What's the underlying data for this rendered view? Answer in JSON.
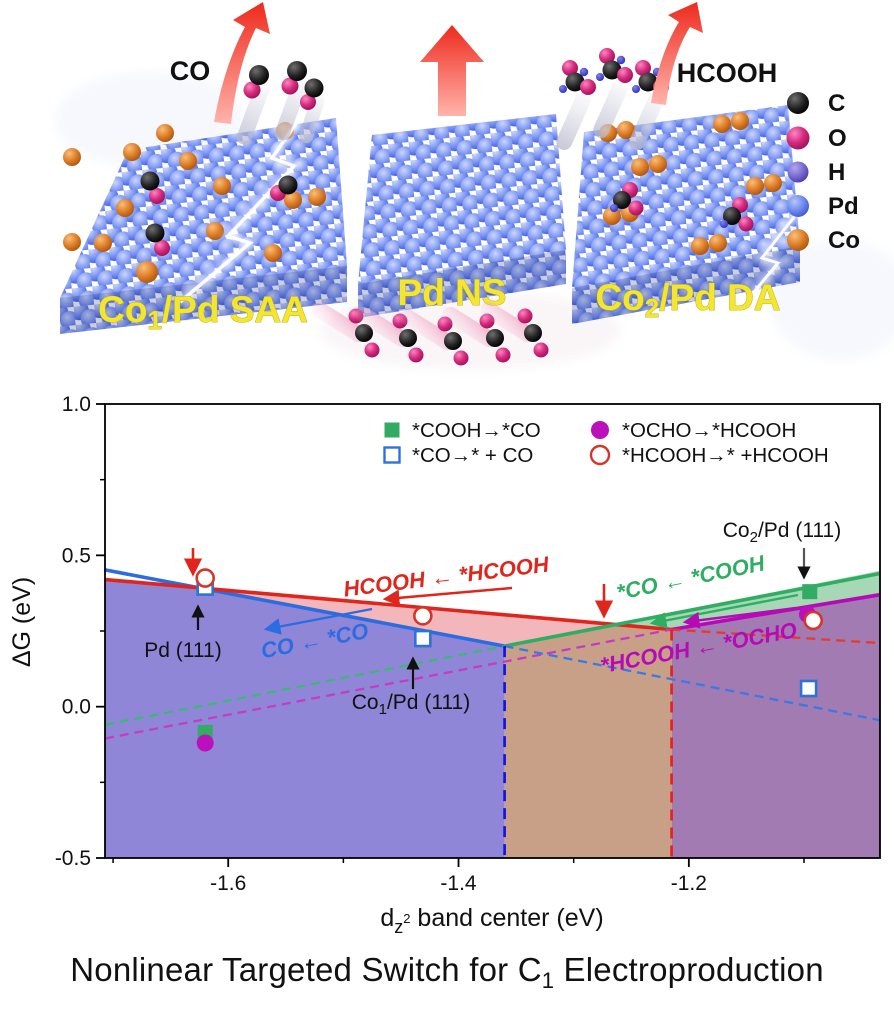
{
  "illustration": {
    "arrow_labels": {
      "left": "CO",
      "right": "HCOOH"
    },
    "surface_labels": [
      {
        "pre": "Co",
        "sub": "1",
        "post": "/Pd SAA"
      },
      {
        "pre": "Pd NS",
        "sub": "",
        "post": ""
      },
      {
        "pre": "Co",
        "sub": "2",
        "post": "/Pd DA"
      }
    ],
    "atom_legend": [
      {
        "element": "C",
        "color": "#1c1c1c"
      },
      {
        "element": "O",
        "color": "#d42a7e"
      },
      {
        "element": "H",
        "color": "#7468cc"
      },
      {
        "element": "Pd",
        "color": "#6e8cf0"
      },
      {
        "element": "Co",
        "color": "#e07f28"
      }
    ]
  },
  "chart": {
    "ylabel": "ΔG (eV)",
    "xlabel_parts": {
      "d": "d",
      "z": "z",
      "sup": "2",
      "rest": " band center (eV)"
    },
    "x_tick_labels": [
      "-1.6",
      "-1.4",
      "-1.2"
    ],
    "y_tick_labels": [
      "1.0",
      "0.5",
      "0.0",
      "-0.5"
    ],
    "legend": [
      {
        "label": "*COOH→*CO",
        "marker": "square-filled",
        "color": "#33ab63"
      },
      {
        "label": "*CO→* + CO",
        "marker": "square-open",
        "color": "#2d72d9"
      },
      {
        "label": "*OCHO→*HCOOH",
        "marker": "circle-filled",
        "color": "#bb10bb"
      },
      {
        "label": "*HCOOH→* +HCOOH",
        "marker": "circle-open",
        "color": "#d6352b"
      }
    ],
    "annotations": {
      "pd111": "Pd (111)",
      "co1pd": {
        "pre": "Co",
        "sub": "1",
        "post": "/Pd (111)"
      },
      "co2pd": {
        "pre": "Co",
        "sub": "2",
        "post": "/Pd (111)"
      },
      "path_red": "HCOOH ← *HCOOH",
      "path_blue": "CO ← *CO",
      "path_green": "*CO ← *COOH",
      "path_magenta": "*HCOOH ← *OCHO"
    },
    "chart_data": {
      "type": "scatter",
      "title": "",
      "xlabel": "dz2 band center (eV)",
      "ylabel": "ΔG (eV)",
      "xlim": [
        -1.707,
        -1.034
      ],
      "ylim": [
        -0.5,
        1.0
      ],
      "x_ticks": [
        -1.6,
        -1.4,
        -1.2
      ],
      "y_ticks": [
        1.0,
        0.5,
        0.0,
        -0.5
      ],
      "grid": false,
      "legend_position": "upper center",
      "series": [
        {
          "name": "*COOH→*CO",
          "marker": "square-filled",
          "color": "#33ab63",
          "points": [
            [
              -1.62,
              -0.085
            ],
            [
              -1.095,
              0.38
            ]
          ]
        },
        {
          "name": "*CO→* + CO",
          "marker": "square-open",
          "color": "#2d72d9",
          "points": [
            [
              -1.62,
              0.395
            ],
            [
              -1.431,
              0.225
            ],
            [
              -1.096,
              0.06
            ]
          ]
        },
        {
          "name": "*OCHO→*HCOOH",
          "marker": "circle-filled",
          "color": "#bb10bb",
          "points": [
            [
              -1.62,
              -0.12
            ],
            [
              -1.097,
              0.305
            ]
          ]
        },
        {
          "name": "*HCOOH→* +HCOOH",
          "marker": "circle-open",
          "color": "#d6352b",
          "points": [
            [
              -1.62,
              0.425
            ],
            [
              -1.431,
              0.3
            ],
            [
              -1.092,
              0.285
            ]
          ]
        }
      ],
      "lines": [
        {
          "name": "CO ← *CO",
          "color": "#2b6de0",
          "style": "solid",
          "x1": -1.707,
          "y1": 0.452,
          "x2": -1.36,
          "y2": 0.2
        },
        {
          "name": "HCOOH ← *HCOOH",
          "color": "#e0251c",
          "style": "solid",
          "x1": -1.707,
          "y1": 0.42,
          "x2": -1.215,
          "y2": 0.255
        },
        {
          "name": "*CO ← *COOH",
          "color": "#2fae63",
          "style": "solid",
          "x1": -1.36,
          "y1": 0.2,
          "x2": -1.034,
          "y2": 0.44
        },
        {
          "name": "*HCOOH ← *OCHO",
          "color": "#b50ab5",
          "style": "solid",
          "x1": -1.215,
          "y1": 0.255,
          "x2": -1.034,
          "y2": 0.37
        },
        {
          "name": "*CO ← *COOH extrapolated",
          "color": "#3db873",
          "style": "dashed",
          "x1": -1.707,
          "y1": -0.06,
          "x2": -1.36,
          "y2": 0.2
        },
        {
          "name": "*HCOOH ← *OCHO extrapolated",
          "color": "#c43bc4",
          "style": "dashed",
          "x1": -1.707,
          "y1": -0.105,
          "x2": -1.215,
          "y2": 0.255
        },
        {
          "name": "CO ← *CO extrapolated",
          "color": "#3a78e8",
          "style": "dashed",
          "x1": -1.36,
          "y1": 0.2,
          "x2": -1.034,
          "y2": -0.045
        },
        {
          "name": "HCOOH ← *HCOOH extrapolated",
          "color": "#e8392f",
          "style": "dashed",
          "x1": -1.215,
          "y1": 0.255,
          "x2": -1.034,
          "y2": 0.21
        }
      ],
      "boundaries": [
        {
          "x": -1.36,
          "top": 0.2,
          "color": "#1515d9"
        },
        {
          "x": -1.215,
          "top": 0.255,
          "color": "#e8211b"
        }
      ],
      "region_colors": {
        "left": "#8f86d8",
        "pink": "#f3b6ba",
        "tan": "#c7a087",
        "green": "#a6d8b5",
        "right": "#a17bb1"
      }
    }
  },
  "caption": {
    "pre": "Nonlinear Targeted Switch for C",
    "sub": "1",
    "post": " Electroproduction"
  }
}
